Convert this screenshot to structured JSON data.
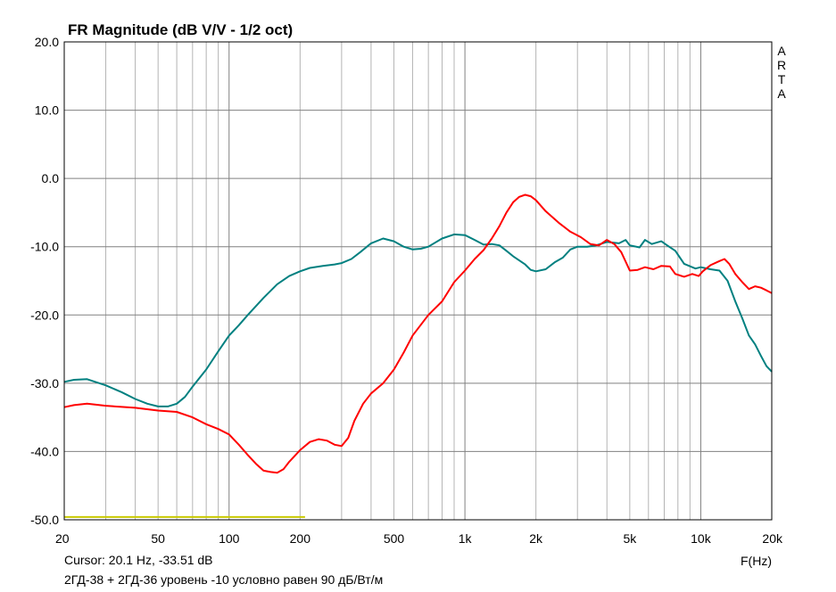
{
  "chart_data": {
    "type": "line",
    "title": "FR Magnitude (dB V/V - 1/2 oct)",
    "xlabel": "F(Hz)",
    "ylabel": "",
    "x_scale": "log",
    "xlim": [
      20,
      20000
    ],
    "ylim": [
      -50,
      20
    ],
    "grid": true,
    "y_ticks": [
      "20.0",
      "10.0",
      "0.0",
      "-10.0",
      "-20.0",
      "-30.0",
      "-40.0",
      "-50.0"
    ],
    "y_tick_values": [
      20,
      10,
      0,
      -10,
      -20,
      -30,
      -40,
      -50
    ],
    "x_ticks": [
      "20",
      "50",
      "100",
      "200",
      "500",
      "1k",
      "2k",
      "5k",
      "10k",
      "20k"
    ],
    "x_tick_values": [
      20,
      50,
      100,
      200,
      500,
      1000,
      2000,
      5000,
      10000,
      20000
    ],
    "series": [
      {
        "color": "#008080",
        "points": [
          [
            20,
            -29.8
          ],
          [
            22,
            -29.5
          ],
          [
            25,
            -29.4
          ],
          [
            30,
            -30.3
          ],
          [
            35,
            -31.3
          ],
          [
            40,
            -32.3
          ],
          [
            45,
            -33.0
          ],
          [
            50,
            -33.4
          ],
          [
            55,
            -33.4
          ],
          [
            60,
            -33.0
          ],
          [
            65,
            -32.0
          ],
          [
            70,
            -30.5
          ],
          [
            80,
            -28.0
          ],
          [
            90,
            -25.3
          ],
          [
            100,
            -23.0
          ],
          [
            110,
            -21.5
          ],
          [
            120,
            -20.0
          ],
          [
            140,
            -17.5
          ],
          [
            160,
            -15.5
          ],
          [
            180,
            -14.3
          ],
          [
            200,
            -13.6
          ],
          [
            220,
            -13.1
          ],
          [
            250,
            -12.8
          ],
          [
            280,
            -12.6
          ],
          [
            300,
            -12.4
          ],
          [
            330,
            -11.8
          ],
          [
            360,
            -10.8
          ],
          [
            400,
            -9.5
          ],
          [
            450,
            -8.8
          ],
          [
            500,
            -9.2
          ],
          [
            550,
            -10.0
          ],
          [
            600,
            -10.4
          ],
          [
            650,
            -10.3
          ],
          [
            700,
            -10.0
          ],
          [
            800,
            -8.8
          ],
          [
            900,
            -8.2
          ],
          [
            1000,
            -8.3
          ],
          [
            1100,
            -9.0
          ],
          [
            1200,
            -9.7
          ],
          [
            1300,
            -9.6
          ],
          [
            1400,
            -9.8
          ],
          [
            1500,
            -10.6
          ],
          [
            1600,
            -11.4
          ],
          [
            1800,
            -12.6
          ],
          [
            1900,
            -13.4
          ],
          [
            2000,
            -13.6
          ],
          [
            2200,
            -13.3
          ],
          [
            2400,
            -12.3
          ],
          [
            2600,
            -11.6
          ],
          [
            2800,
            -10.4
          ],
          [
            3000,
            -10.0
          ],
          [
            3300,
            -10.0
          ],
          [
            3600,
            -9.8
          ],
          [
            4000,
            -9.3
          ],
          [
            4500,
            -9.5
          ],
          [
            4800,
            -9.0
          ],
          [
            5000,
            -9.8
          ],
          [
            5500,
            -10.1
          ],
          [
            5800,
            -9.0
          ],
          [
            6200,
            -9.6
          ],
          [
            6800,
            -9.2
          ],
          [
            7200,
            -9.8
          ],
          [
            7800,
            -10.6
          ],
          [
            8500,
            -12.5
          ],
          [
            9500,
            -13.2
          ],
          [
            10000,
            -13.0
          ],
          [
            11000,
            -13.3
          ],
          [
            12000,
            -13.5
          ],
          [
            13000,
            -15.0
          ],
          [
            14000,
            -18.0
          ],
          [
            15000,
            -20.5
          ],
          [
            16000,
            -23.0
          ],
          [
            17000,
            -24.3
          ],
          [
            18000,
            -26.0
          ],
          [
            19000,
            -27.5
          ],
          [
            20000,
            -28.3
          ]
        ]
      },
      {
        "color": "#ff0000",
        "points": [
          [
            20,
            -33.5
          ],
          [
            22,
            -33.2
          ],
          [
            25,
            -33.0
          ],
          [
            30,
            -33.3
          ],
          [
            40,
            -33.6
          ],
          [
            50,
            -34.0
          ],
          [
            60,
            -34.2
          ],
          [
            70,
            -35.0
          ],
          [
            80,
            -36.0
          ],
          [
            90,
            -36.7
          ],
          [
            100,
            -37.5
          ],
          [
            110,
            -39.0
          ],
          [
            120,
            -40.5
          ],
          [
            130,
            -41.8
          ],
          [
            140,
            -42.8
          ],
          [
            150,
            -43.0
          ],
          [
            160,
            -43.1
          ],
          [
            170,
            -42.6
          ],
          [
            180,
            -41.5
          ],
          [
            200,
            -39.8
          ],
          [
            220,
            -38.6
          ],
          [
            240,
            -38.2
          ],
          [
            260,
            -38.4
          ],
          [
            280,
            -39.0
          ],
          [
            300,
            -39.2
          ],
          [
            320,
            -38.0
          ],
          [
            340,
            -35.5
          ],
          [
            370,
            -33.0
          ],
          [
            400,
            -31.5
          ],
          [
            450,
            -30.0
          ],
          [
            500,
            -28.0
          ],
          [
            550,
            -25.5
          ],
          [
            600,
            -23.0
          ],
          [
            700,
            -20.0
          ],
          [
            800,
            -18.0
          ],
          [
            900,
            -15.2
          ],
          [
            1000,
            -13.5
          ],
          [
            1100,
            -11.8
          ],
          [
            1200,
            -10.5
          ],
          [
            1300,
            -8.8
          ],
          [
            1400,
            -7.0
          ],
          [
            1500,
            -5.0
          ],
          [
            1600,
            -3.5
          ],
          [
            1700,
            -2.7
          ],
          [
            1800,
            -2.4
          ],
          [
            1900,
            -2.6
          ],
          [
            2000,
            -3.2
          ],
          [
            2200,
            -4.8
          ],
          [
            2500,
            -6.5
          ],
          [
            2800,
            -7.8
          ],
          [
            3100,
            -8.6
          ],
          [
            3400,
            -9.6
          ],
          [
            3700,
            -9.8
          ],
          [
            4000,
            -9.0
          ],
          [
            4300,
            -9.6
          ],
          [
            4600,
            -10.8
          ],
          [
            5000,
            -13.5
          ],
          [
            5400,
            -13.4
          ],
          [
            5800,
            -13.0
          ],
          [
            6300,
            -13.3
          ],
          [
            6800,
            -12.8
          ],
          [
            7400,
            -12.9
          ],
          [
            7800,
            -14.0
          ],
          [
            8500,
            -14.4
          ],
          [
            9200,
            -14.0
          ],
          [
            9800,
            -14.3
          ],
          [
            10200,
            -13.6
          ],
          [
            11000,
            -12.7
          ],
          [
            12000,
            -12.1
          ],
          [
            12600,
            -11.8
          ],
          [
            13200,
            -12.5
          ],
          [
            14000,
            -14.0
          ],
          [
            15000,
            -15.2
          ],
          [
            16000,
            -16.2
          ],
          [
            17000,
            -15.8
          ],
          [
            18000,
            -16.0
          ],
          [
            19000,
            -16.4
          ],
          [
            20000,
            -16.8
          ]
        ]
      },
      {
        "color": "#c8c800",
        "points": [
          [
            20,
            -49.6
          ],
          [
            210,
            -49.6
          ]
        ]
      }
    ]
  },
  "cursor_readout": "Cursor: 20.1 Hz, -33.51 dB",
  "caption": "2ГД-38 + 2ГД-36 уровень -10 условно равен 90 дБ/Вт/м",
  "brand_letters": [
    "A",
    "R",
    "T",
    "A"
  ]
}
